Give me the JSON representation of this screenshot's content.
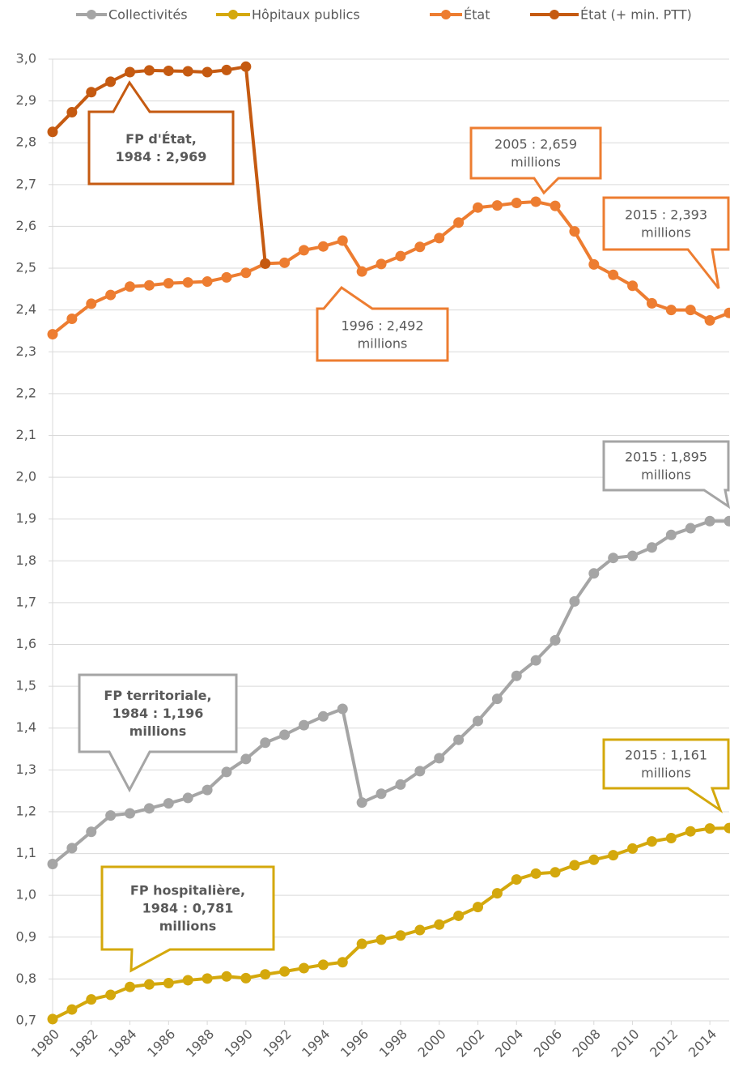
{
  "chart_data": {
    "type": "line",
    "x": [
      1980,
      1981,
      1982,
      1983,
      1984,
      1985,
      1986,
      1987,
      1988,
      1989,
      1990,
      1991,
      1992,
      1993,
      1994,
      1995,
      1996,
      1997,
      1998,
      1999,
      2000,
      2001,
      2002,
      2003,
      2004,
      2005,
      2006,
      2007,
      2008,
      2009,
      2010,
      2011,
      2012,
      2013,
      2014,
      2015
    ],
    "series": [
      {
        "name": "Collectivités",
        "color": "#a5a5a5",
        "values": [
          1.075,
          1.113,
          1.152,
          1.191,
          1.196,
          1.208,
          1.22,
          1.233,
          1.252,
          1.295,
          1.326,
          1.365,
          1.384,
          1.407,
          1.428,
          1.446,
          1.222,
          1.243,
          1.265,
          1.297,
          1.328,
          1.372,
          1.417,
          1.47,
          1.525,
          1.562,
          1.61,
          1.703,
          1.77,
          1.807,
          1.812,
          1.832,
          1.862,
          1.878,
          1.895,
          1.895
        ]
      },
      {
        "name": "Hôpitaux publics",
        "color": "#d4a80c",
        "values": [
          0.704,
          0.727,
          0.751,
          0.762,
          0.781,
          0.787,
          0.79,
          0.797,
          0.801,
          0.806,
          0.802,
          0.811,
          0.818,
          0.826,
          0.834,
          0.84,
          0.884,
          0.894,
          0.904,
          0.917,
          0.93,
          0.951,
          0.972,
          1.005,
          1.038,
          1.052,
          1.055,
          1.072,
          1.085,
          1.096,
          1.112,
          1.129,
          1.137,
          1.153,
          1.16,
          1.161
        ]
      },
      {
        "name": "État",
        "color": "#ed7d31",
        "values": [
          2.342,
          2.379,
          2.415,
          2.436,
          2.456,
          2.459,
          2.464,
          2.466,
          2.468,
          2.478,
          2.489,
          2.511,
          2.513,
          2.543,
          2.552,
          2.566,
          2.492,
          2.51,
          2.529,
          2.551,
          2.572,
          2.609,
          2.645,
          2.65,
          2.656,
          2.659,
          2.649,
          2.588,
          2.509,
          2.484,
          2.458,
          2.416,
          2.4,
          2.4,
          2.375,
          2.393
        ]
      },
      {
        "name": "État (+ min. PTT)",
        "color": "#c55a11",
        "values": [
          2.826,
          2.873,
          2.921,
          2.946,
          2.969,
          2.973,
          2.972,
          2.971,
          2.969,
          2.974,
          2.982,
          2.511,
          null,
          null,
          null,
          null,
          null,
          null,
          null,
          null,
          null,
          null,
          null,
          null,
          null,
          null,
          null,
          null,
          null,
          null,
          null,
          null,
          null,
          null,
          null,
          null
        ]
      }
    ],
    "gaps_after": [],
    "xlim": [
      1980,
      2015
    ],
    "xticks": [
      1980,
      1982,
      1984,
      1986,
      1988,
      1990,
      1992,
      1994,
      1996,
      1998,
      2000,
      2002,
      2004,
      2006,
      2008,
      2010,
      2012,
      2014
    ],
    "ylim": [
      0.7,
      3.0
    ],
    "yticks": [
      {
        "value": 0.7,
        "label": "0,7"
      },
      {
        "value": 0.8,
        "label": "0,8"
      },
      {
        "value": 0.9,
        "label": "0,9"
      },
      {
        "value": 1.0,
        "label": "1,0"
      },
      {
        "value": 1.1,
        "label": "1,1"
      },
      {
        "value": 1.2,
        "label": "1,2"
      },
      {
        "value": 1.3,
        "label": "1,3"
      },
      {
        "value": 1.4,
        "label": "1,4"
      },
      {
        "value": 1.5,
        "label": "1,5"
      },
      {
        "value": 1.6,
        "label": "1,6"
      },
      {
        "value": 1.7,
        "label": "1,7"
      },
      {
        "value": 1.8,
        "label": "1,8"
      },
      {
        "value": 1.9,
        "label": "1,9"
      },
      {
        "value": 2.0,
        "label": "2,0"
      },
      {
        "value": 2.1,
        "label": "2,1"
      },
      {
        "value": 2.2,
        "label": "2,2"
      },
      {
        "value": 2.3,
        "label": "2,3"
      },
      {
        "value": 2.4,
        "label": "2,4"
      },
      {
        "value": 2.5,
        "label": "2,5"
      },
      {
        "value": 2.6,
        "label": "2,6"
      },
      {
        "value": 2.7,
        "label": "2,7"
      },
      {
        "value": 2.8,
        "label": "2,8"
      },
      {
        "value": 2.9,
        "label": "2,9"
      },
      {
        "value": 3.0,
        "label": "3,0"
      }
    ],
    "grid": true,
    "legend": "top",
    "annotations": [
      {
        "lines": [
          "FP d'État,",
          "1984 : 2,969"
        ],
        "color": "#c55a11",
        "bold": true
      },
      {
        "lines": [
          "2005 : 2,659",
          "millions"
        ],
        "color": "#ed7d31",
        "bold": false
      },
      {
        "lines": [
          "2015 : 2,393",
          "millions"
        ],
        "color": "#ed7d31",
        "bold": false
      },
      {
        "lines": [
          "1996 : 2,492",
          "millions"
        ],
        "color": "#ed7d31",
        "bold": false
      },
      {
        "lines": [
          "2015 : 1,895",
          "millions"
        ],
        "color": "#a5a5a5",
        "bold": false
      },
      {
        "lines": [
          "FP territoriale,",
          "1984 : 1,196",
          "millions"
        ],
        "color": "#a5a5a5",
        "bold": true
      },
      {
        "lines": [
          "2015 : 1,161",
          "millions"
        ],
        "color": "#d4a80c",
        "bold": false
      },
      {
        "lines": [
          "FP hospitalière,",
          "1984 : 0,781",
          "millions"
        ],
        "color": "#d4a80c",
        "bold": true
      }
    ]
  }
}
